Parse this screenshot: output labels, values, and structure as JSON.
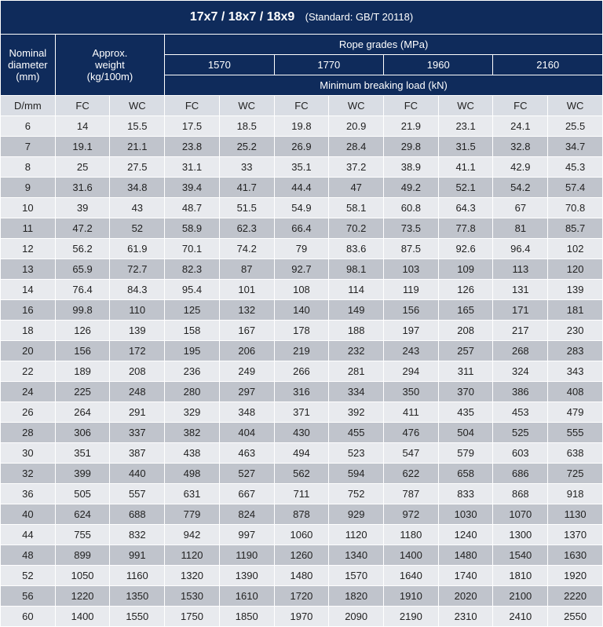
{
  "title": "17x7 / 18x7 / 18x9",
  "standard": "(Standard: GB/T 20118)",
  "colors": {
    "header_bg": "#0f2b5b",
    "header_text": "#ffffff",
    "row_even_bg": "#c0c4cc",
    "row_odd_bg": "#e8eaee",
    "subheader_bg": "#d9dde4",
    "border": "#ffffff"
  },
  "header": {
    "nominal_diameter": "Nominal diameter (mm)",
    "approx_weight": "Approx. weight (kg/100m)",
    "rope_grades": "Rope grades (MPa)",
    "grades": [
      "1570",
      "1770",
      "1960",
      "2160"
    ],
    "min_breaking": "Minimum breaking load (kN)",
    "dmm": "D/mm",
    "fc": "FC",
    "wc": "WC"
  },
  "rows": [
    [
      "6",
      "14",
      "15.5",
      "17.5",
      "18.5",
      "19.8",
      "20.9",
      "21.9",
      "23.1",
      "24.1",
      "25.5"
    ],
    [
      "7",
      "19.1",
      "21.1",
      "23.8",
      "25.2",
      "26.9",
      "28.4",
      "29.8",
      "31.5",
      "32.8",
      "34.7"
    ],
    [
      "8",
      "25",
      "27.5",
      "31.1",
      "33",
      "35.1",
      "37.2",
      "38.9",
      "41.1",
      "42.9",
      "45.3"
    ],
    [
      "9",
      "31.6",
      "34.8",
      "39.4",
      "41.7",
      "44.4",
      "47",
      "49.2",
      "52.1",
      "54.2",
      "57.4"
    ],
    [
      "10",
      "39",
      "43",
      "48.7",
      "51.5",
      "54.9",
      "58.1",
      "60.8",
      "64.3",
      "67",
      "70.8"
    ],
    [
      "11",
      "47.2",
      "52",
      "58.9",
      "62.3",
      "66.4",
      "70.2",
      "73.5",
      "77.8",
      "81",
      "85.7"
    ],
    [
      "12",
      "56.2",
      "61.9",
      "70.1",
      "74.2",
      "79",
      "83.6",
      "87.5",
      "92.6",
      "96.4",
      "102"
    ],
    [
      "13",
      "65.9",
      "72.7",
      "82.3",
      "87",
      "92.7",
      "98.1",
      "103",
      "109",
      "113",
      "120"
    ],
    [
      "14",
      "76.4",
      "84.3",
      "95.4",
      "101",
      "108",
      "114",
      "119",
      "126",
      "131",
      "139"
    ],
    [
      "16",
      "99.8",
      "110",
      "125",
      "132",
      "140",
      "149",
      "156",
      "165",
      "171",
      "181"
    ],
    [
      "18",
      "126",
      "139",
      "158",
      "167",
      "178",
      "188",
      "197",
      "208",
      "217",
      "230"
    ],
    [
      "20",
      "156",
      "172",
      "195",
      "206",
      "219",
      "232",
      "243",
      "257",
      "268",
      "283"
    ],
    [
      "22",
      "189",
      "208",
      "236",
      "249",
      "266",
      "281",
      "294",
      "311",
      "324",
      "343"
    ],
    [
      "24",
      "225",
      "248",
      "280",
      "297",
      "316",
      "334",
      "350",
      "370",
      "386",
      "408"
    ],
    [
      "26",
      "264",
      "291",
      "329",
      "348",
      "371",
      "392",
      "411",
      "435",
      "453",
      "479"
    ],
    [
      "28",
      "306",
      "337",
      "382",
      "404",
      "430",
      "455",
      "476",
      "504",
      "525",
      "555"
    ],
    [
      "30",
      "351",
      "387",
      "438",
      "463",
      "494",
      "523",
      "547",
      "579",
      "603",
      "638"
    ],
    [
      "32",
      "399",
      "440",
      "498",
      "527",
      "562",
      "594",
      "622",
      "658",
      "686",
      "725"
    ],
    [
      "36",
      "505",
      "557",
      "631",
      "667",
      "711",
      "752",
      "787",
      "833",
      "868",
      "918"
    ],
    [
      "40",
      "624",
      "688",
      "779",
      "824",
      "878",
      "929",
      "972",
      "1030",
      "1070",
      "1130"
    ],
    [
      "44",
      "755",
      "832",
      "942",
      "997",
      "1060",
      "1120",
      "1180",
      "1240",
      "1300",
      "1370"
    ],
    [
      "48",
      "899",
      "991",
      "1120",
      "1190",
      "1260",
      "1340",
      "1400",
      "1480",
      "1540",
      "1630"
    ],
    [
      "52",
      "1050",
      "1160",
      "1320",
      "1390",
      "1480",
      "1570",
      "1640",
      "1740",
      "1810",
      "1920"
    ],
    [
      "56",
      "1220",
      "1350",
      "1530",
      "1610",
      "1720",
      "1820",
      "1910",
      "2020",
      "2100",
      "2220"
    ],
    [
      "60",
      "1400",
      "1550",
      "1750",
      "1850",
      "1970",
      "2090",
      "2190",
      "2310",
      "2410",
      "2550"
    ]
  ]
}
